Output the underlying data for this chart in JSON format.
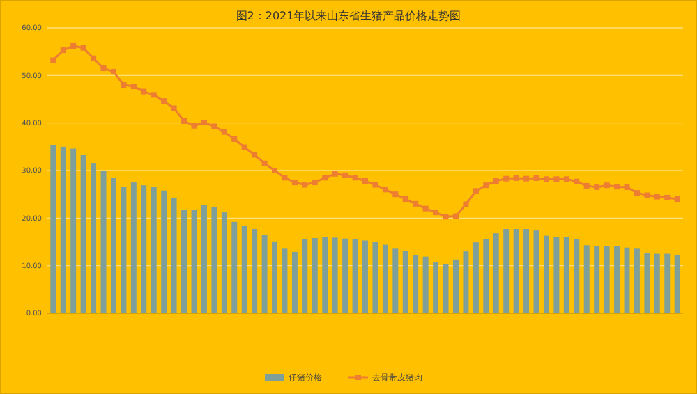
{
  "chart_data": {
    "type": "bar",
    "title": "图2：2021年以来山东省生猪产品价格走势图",
    "categories": [
      null,
      null,
      null,
      null,
      null,
      null,
      null,
      null,
      null,
      null,
      null,
      null,
      null,
      null,
      null,
      null,
      null,
      null,
      null,
      null,
      null,
      null,
      null,
      null,
      null,
      null,
      null,
      null,
      null,
      null,
      null,
      null,
      null,
      null,
      null,
      null,
      null,
      null,
      null,
      null,
      null,
      null,
      null,
      null,
      null,
      null,
      null,
      null,
      null,
      null,
      null,
      null,
      null,
      null,
      null,
      null,
      null,
      null,
      null,
      null,
      null,
      null,
      null
    ],
    "series": [
      {
        "name": "仔猪价格",
        "color": "#7f9f9a",
        "values": [
          35.3,
          35.0,
          34.6,
          33.3,
          31.6,
          30.0,
          28.5,
          26.5,
          27.5,
          26.9,
          26.6,
          25.8,
          24.3,
          21.8,
          21.8,
          22.7,
          22.4,
          21.2,
          19.2,
          18.4,
          17.7,
          16.5,
          15.1,
          13.7,
          12.9,
          15.6,
          15.8,
          16.0,
          15.9,
          15.7,
          15.6,
          15.3,
          15.0,
          14.4,
          13.7,
          13.1,
          12.3,
          11.9,
          10.8,
          10.4,
          11.3,
          13.0,
          14.9,
          15.6,
          16.8,
          17.7,
          17.7,
          17.7,
          17.4,
          16.3,
          16.0,
          16.0,
          15.6,
          14.3,
          14.1,
          14.1,
          14.1,
          13.8,
          13.7,
          12.6,
          12.5,
          12.5,
          12.3
        ]
      },
      {
        "name": "去骨带皮猪肉",
        "type": "line",
        "color": "#ed7d31",
        "values": [
          53.2,
          55.3,
          56.2,
          55.8,
          53.6,
          51.5,
          50.8,
          48.0,
          47.7,
          46.6,
          45.9,
          44.6,
          43.1,
          40.4,
          39.4,
          40.1,
          39.3,
          38.1,
          36.6,
          34.9,
          33.3,
          31.5,
          30.0,
          28.5,
          27.5,
          27.0,
          27.5,
          28.5,
          29.3,
          29.0,
          28.5,
          27.8,
          27.0,
          26.0,
          25.0,
          24.0,
          23.0,
          22.0,
          21.2,
          20.3,
          20.4,
          22.9,
          25.7,
          26.9,
          27.8,
          28.3,
          28.4,
          28.3,
          28.4,
          28.2,
          28.2,
          28.2,
          27.7,
          26.8,
          26.5,
          26.9,
          26.6,
          26.5,
          25.3,
          24.8,
          24.5,
          24.3,
          24.0
        ]
      }
    ],
    "ylim": [
      0,
      60
    ],
    "yticks": [
      {
        "value": 0,
        "label": "0.00"
      },
      {
        "value": 10,
        "label": "10.00"
      },
      {
        "value": 20,
        "label": "20.00"
      },
      {
        "value": 30,
        "label": "30.00"
      },
      {
        "value": 40,
        "label": "40.00"
      },
      {
        "value": 50,
        "label": "50.00"
      },
      {
        "value": 60,
        "label": "60.00"
      }
    ],
    "grid": "y",
    "legend": "bottom",
    "marker": "square",
    "line_style": "solid"
  }
}
